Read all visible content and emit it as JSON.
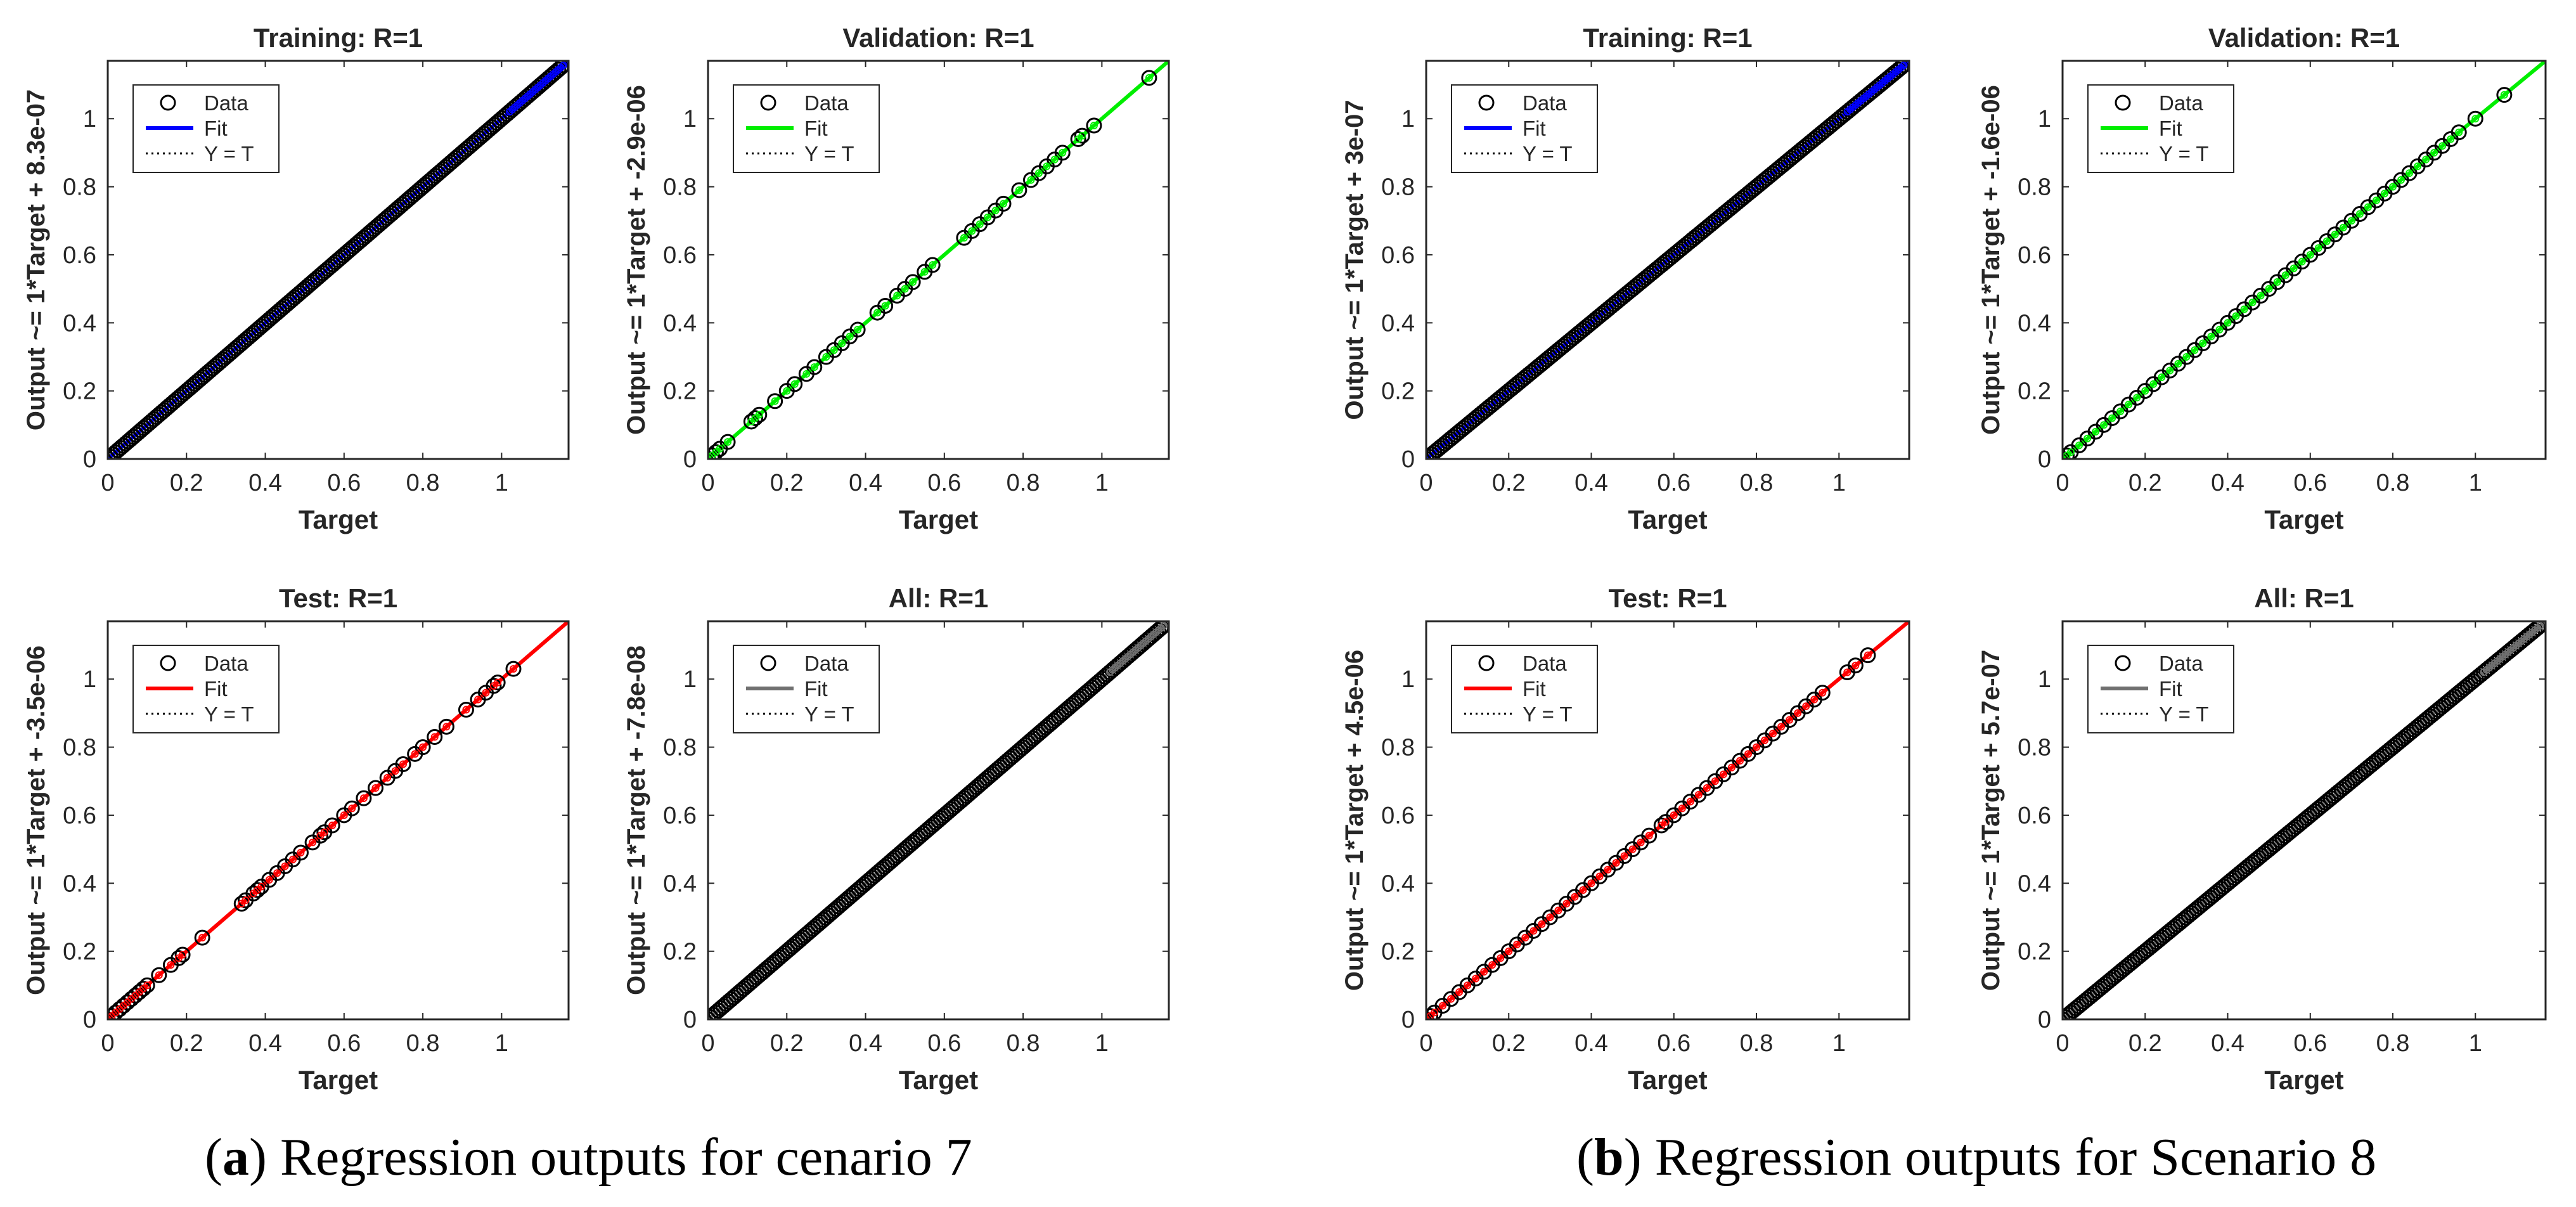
{
  "figure": {
    "caption_a": {
      "letter": "a",
      "text": "Regression outputs for cenario 7"
    },
    "caption_b": {
      "letter": "b",
      "text": "Regression outputs for Scenario 8"
    }
  },
  "colors": {
    "training": "#0000ff",
    "validation": "#00ee00",
    "test": "#ff0000",
    "all": "#707070",
    "data": "#000000"
  },
  "legend_labels": {
    "data": "Data",
    "fit": "Fit",
    "yt": "Y = T"
  },
  "chart_data": [
    {
      "panel": "a",
      "type": "scatter",
      "title": "Training: R=1",
      "xlabel": "Target",
      "ylabel": "Output ~= 1*Target + 8.3e-07",
      "fit_color": "#0000ff",
      "xlim": [
        0,
        1.17
      ],
      "ylim": [
        0,
        1.17
      ],
      "xticks": [
        0,
        0.2,
        0.4,
        0.6,
        0.8,
        1
      ],
      "yticks": [
        0,
        0.2,
        0.4,
        0.6,
        0.8,
        1
      ],
      "slope": 1,
      "intercept": 8.3e-07,
      "density": "dense",
      "x_range": [
        0,
        1.16
      ]
    },
    {
      "panel": "a",
      "type": "scatter",
      "title": "Validation: R=1",
      "xlabel": "Target",
      "ylabel": "Output ~= 1*Target + -2.9e-06",
      "fit_color": "#00ee00",
      "xlim": [
        0,
        1.17
      ],
      "ylim": [
        0,
        1.17
      ],
      "xticks": [
        0,
        0.2,
        0.4,
        0.6,
        0.8,
        1
      ],
      "yticks": [
        0,
        0.2,
        0.4,
        0.6,
        0.8,
        1
      ],
      "slope": 1,
      "intercept": -2.9e-06,
      "density": "sparse",
      "x": [
        0.0,
        0.01,
        0.02,
        0.03,
        0.05,
        0.11,
        0.12,
        0.13,
        0.17,
        0.2,
        0.22,
        0.25,
        0.27,
        0.3,
        0.32,
        0.34,
        0.36,
        0.38,
        0.43,
        0.45,
        0.48,
        0.5,
        0.52,
        0.55,
        0.57,
        0.65,
        0.67,
        0.69,
        0.71,
        0.73,
        0.75,
        0.79,
        0.82,
        0.84,
        0.86,
        0.88,
        0.9,
        0.94,
        0.95,
        0.98,
        1.12
      ]
    },
    {
      "panel": "a",
      "type": "scatter",
      "title": "Test: R=1",
      "xlabel": "Target",
      "ylabel": "Output ~= 1*Target + -3.5e-06",
      "fit_color": "#ff0000",
      "xlim": [
        0,
        1.17
      ],
      "ylim": [
        0,
        1.17
      ],
      "xticks": [
        0,
        0.2,
        0.4,
        0.6,
        0.8,
        1
      ],
      "yticks": [
        0,
        0.2,
        0.4,
        0.6,
        0.8,
        1
      ],
      "slope": 1,
      "intercept": -3.5e-06,
      "density": "sparse",
      "x": [
        0.0,
        0.01,
        0.02,
        0.03,
        0.04,
        0.05,
        0.06,
        0.07,
        0.08,
        0.09,
        0.1,
        0.13,
        0.16,
        0.18,
        0.19,
        0.24,
        0.34,
        0.35,
        0.37,
        0.38,
        0.39,
        0.41,
        0.43,
        0.45,
        0.47,
        0.49,
        0.52,
        0.54,
        0.55,
        0.57,
        0.6,
        0.62,
        0.65,
        0.68,
        0.71,
        0.73,
        0.75,
        0.78,
        0.8,
        0.83,
        0.86,
        0.91,
        0.94,
        0.96,
        0.98,
        0.99,
        1.03
      ]
    },
    {
      "panel": "a",
      "type": "scatter",
      "title": "All: R=1",
      "xlabel": "Target",
      "ylabel": "Output ~= 1*Target + -7.8e-08",
      "fit_color": "#707070",
      "xlim": [
        0,
        1.17
      ],
      "ylim": [
        0,
        1.17
      ],
      "xticks": [
        0,
        0.2,
        0.4,
        0.6,
        0.8,
        1
      ],
      "yticks": [
        0,
        0.2,
        0.4,
        0.6,
        0.8,
        1
      ],
      "slope": 1,
      "intercept": -7.8e-08,
      "density": "dense",
      "x_range": [
        0,
        1.16
      ]
    },
    {
      "panel": "b",
      "type": "scatter",
      "title": "Training: R=1",
      "xlabel": "Target",
      "ylabel": "Output ~= 1*Target + 3e-07",
      "fit_color": "#0000ff",
      "xlim": [
        0,
        1.17
      ],
      "ylim": [
        0,
        1.17
      ],
      "xticks": [
        0,
        0.2,
        0.4,
        0.6,
        0.8,
        1
      ],
      "yticks": [
        0,
        0.2,
        0.4,
        0.6,
        0.8,
        1
      ],
      "slope": 1,
      "intercept": 3e-07,
      "density": "dense",
      "x_range": [
        0,
        1.16
      ]
    },
    {
      "panel": "b",
      "type": "scatter",
      "title": "Validation: R=1",
      "xlabel": "Target",
      "ylabel": "Output ~= 1*Target + -1.6e-06",
      "fit_color": "#00ee00",
      "xlim": [
        0,
        1.17
      ],
      "ylim": [
        0,
        1.17
      ],
      "xticks": [
        0,
        0.2,
        0.4,
        0.6,
        0.8,
        1
      ],
      "yticks": [
        0,
        0.2,
        0.4,
        0.6,
        0.8,
        1
      ],
      "slope": 1,
      "intercept": -1.6e-06,
      "density": "sparse",
      "x": [
        0.0,
        0.01,
        0.02,
        0.04,
        0.06,
        0.08,
        0.1,
        0.12,
        0.14,
        0.16,
        0.18,
        0.2,
        0.22,
        0.24,
        0.26,
        0.28,
        0.3,
        0.32,
        0.34,
        0.36,
        0.38,
        0.4,
        0.42,
        0.44,
        0.46,
        0.48,
        0.5,
        0.52,
        0.54,
        0.56,
        0.58,
        0.6,
        0.62,
        0.64,
        0.66,
        0.68,
        0.7,
        0.72,
        0.74,
        0.76,
        0.78,
        0.8,
        0.82,
        0.84,
        0.86,
        0.88,
        0.9,
        0.92,
        0.94,
        0.96,
        1.0,
        1.07
      ]
    },
    {
      "panel": "b",
      "type": "scatter",
      "title": "Test: R=1",
      "xlabel": "Target",
      "ylabel": "Output ~= 1*Target + 4.5e-06",
      "fit_color": "#ff0000",
      "xlim": [
        0,
        1.17
      ],
      "ylim": [
        0,
        1.17
      ],
      "xticks": [
        0,
        0.2,
        0.4,
        0.6,
        0.8,
        1
      ],
      "yticks": [
        0,
        0.2,
        0.4,
        0.6,
        0.8,
        1
      ],
      "slope": 1,
      "intercept": 4.5e-06,
      "density": "sparse",
      "x": [
        0.0,
        0.01,
        0.02,
        0.04,
        0.06,
        0.08,
        0.1,
        0.12,
        0.14,
        0.16,
        0.18,
        0.2,
        0.22,
        0.24,
        0.26,
        0.28,
        0.3,
        0.32,
        0.34,
        0.36,
        0.38,
        0.4,
        0.42,
        0.44,
        0.46,
        0.48,
        0.5,
        0.52,
        0.54,
        0.57,
        0.58,
        0.6,
        0.62,
        0.64,
        0.66,
        0.68,
        0.7,
        0.72,
        0.74,
        0.76,
        0.78,
        0.8,
        0.82,
        0.84,
        0.86,
        0.88,
        0.9,
        0.92,
        0.94,
        0.96,
        1.02,
        1.04,
        1.07
      ]
    },
    {
      "panel": "b",
      "type": "scatter",
      "title": "All: R=1",
      "xlabel": "Target",
      "ylabel": "Output ~= 1*Target + 5.7e-07",
      "fit_color": "#707070",
      "xlim": [
        0,
        1.17
      ],
      "ylim": [
        0,
        1.17
      ],
      "xticks": [
        0,
        0.2,
        0.4,
        0.6,
        0.8,
        1
      ],
      "yticks": [
        0,
        0.2,
        0.4,
        0.6,
        0.8,
        1
      ],
      "slope": 1,
      "intercept": 5.7e-07,
      "density": "dense",
      "x_range": [
        0,
        1.16
      ]
    }
  ]
}
